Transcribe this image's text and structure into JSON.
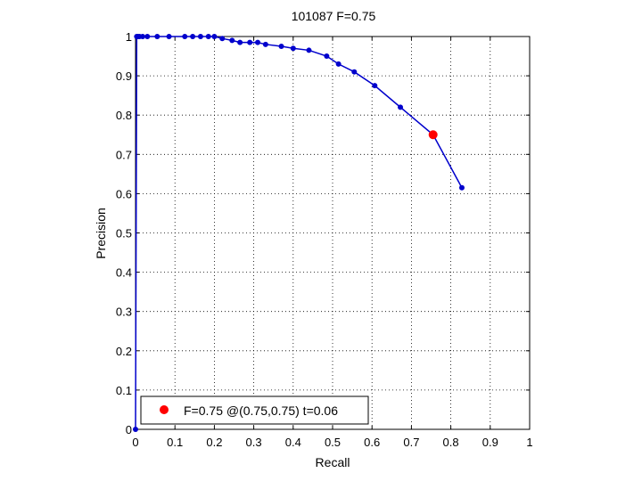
{
  "chart_data": {
    "type": "line",
    "title": "101087 F=0.75",
    "xlabel": "Recall",
    "ylabel": "Precision",
    "xlim": [
      0,
      1
    ],
    "ylim": [
      0,
      1
    ],
    "grid": true,
    "x_ticks": [
      "0",
      "0.1",
      "0.2",
      "0.3",
      "0.4",
      "0.5",
      "0.6",
      "0.7",
      "0.8",
      "0.9",
      "1"
    ],
    "y_ticks": [
      "0",
      "0.1",
      "0.2",
      "0.3",
      "0.4",
      "0.5",
      "0.6",
      "0.7",
      "0.8",
      "0.9",
      "1"
    ],
    "series": [
      {
        "color": "#0000cc",
        "x": [
          0,
          0.003,
          0.006,
          0.01,
          0.018,
          0.03,
          0.055,
          0.085,
          0.125,
          0.145,
          0.165,
          0.185,
          0.2,
          0.22,
          0.245,
          0.265,
          0.29,
          0.31,
          0.33,
          0.37,
          0.4,
          0.44,
          0.485,
          0.515,
          0.555,
          0.607,
          0.672,
          0.755,
          0.828
        ],
        "y": [
          0,
          1,
          1,
          1,
          1,
          1,
          1,
          1,
          1,
          1,
          1,
          1,
          1,
          0.995,
          0.99,
          0.985,
          0.985,
          0.985,
          0.98,
          0.975,
          0.97,
          0.965,
          0.95,
          0.93,
          0.91,
          0.875,
          0.82,
          0.75,
          0.615
        ]
      }
    ],
    "highlight_point": {
      "x": 0.755,
      "y": 0.75,
      "color": "#ff0000"
    },
    "legend": {
      "position": "bottom-left",
      "label": "F=0.75 @(0.75,0.75) t=0.06"
    }
  }
}
